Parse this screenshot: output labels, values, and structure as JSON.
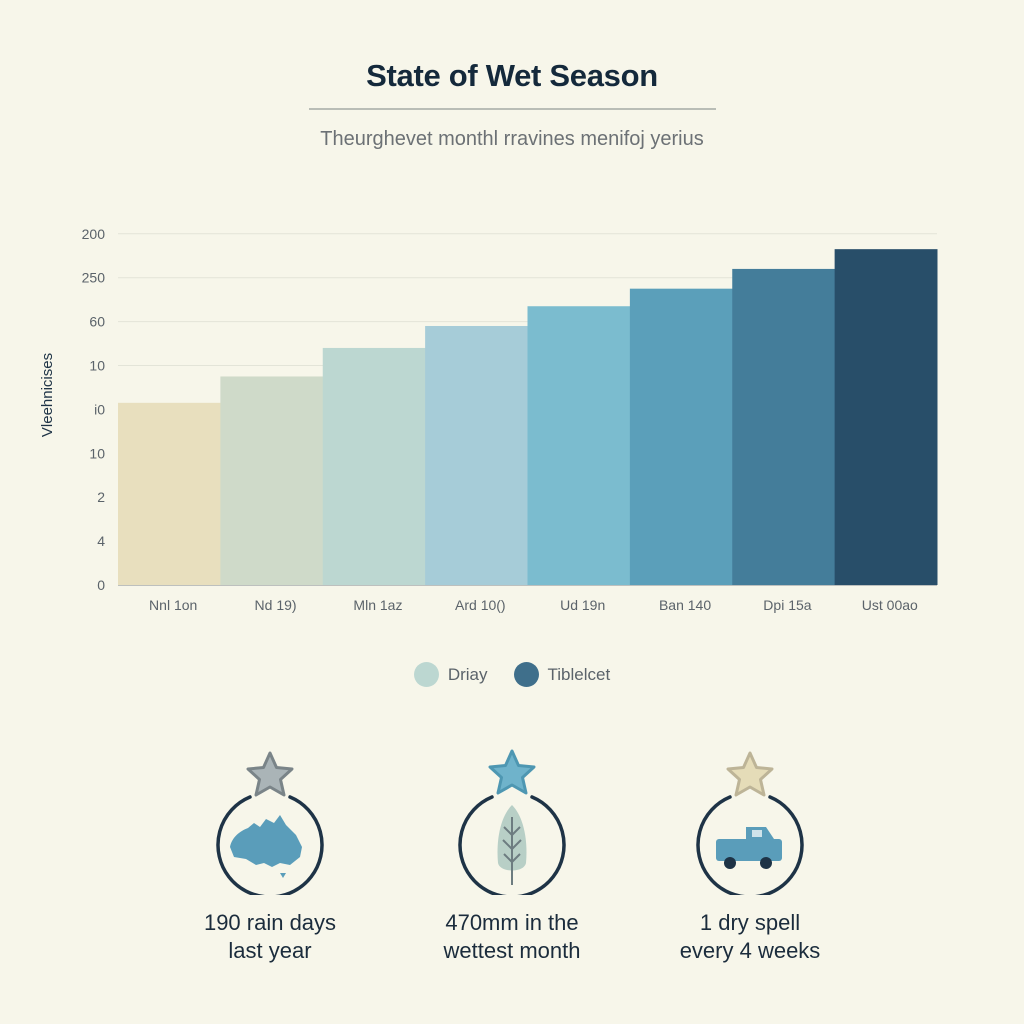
{
  "header": {
    "title": "State of Wet Season",
    "subtitle": "Theurghevet monthl rravines menifoj yerius"
  },
  "chart_data": {
    "type": "bar",
    "ylabel": "Vleehnicises",
    "ytick_labels": [
      "0",
      "4",
      "2",
      "10",
      "i0",
      "10",
      "60",
      "250",
      "200"
    ],
    "categories": [
      "Nnl 1on",
      "Nd 19)",
      "Mln 1az",
      "Ard 10()",
      "Ud 19n",
      "Ban 140",
      "Dpi 15a",
      "Ust 00ao"
    ],
    "values_tick_units": [
      4.15,
      4.75,
      5.4,
      5.9,
      6.35,
      6.75,
      7.2,
      7.65
    ],
    "bar_colors": [
      "#e8dfbe",
      "#cfdac9",
      "#bcd7d1",
      "#a6ccd8",
      "#7bbccf",
      "#5b9fba",
      "#447d9a",
      "#284e69"
    ],
    "grid": "horizontal",
    "legend": {
      "placement": "bottom",
      "items": [
        {
          "label": "Driay",
          "color": "#bcd7d1"
        },
        {
          "label": "Tiblelcet",
          "color": "#3f6f8b"
        }
      ]
    }
  },
  "stats": [
    {
      "line1": "190 rain days",
      "line2": "last year",
      "icon": "australia-map-icon",
      "star_color": "#aab4b7"
    },
    {
      "line1": "470mm in the",
      "line2": "wettest month",
      "icon": "tree-icon",
      "star_color": "#6fb3cb"
    },
    {
      "line1": "1 dry spell",
      "line2": "every 4 weeks",
      "icon": "truck-icon",
      "star_color": "#e5dcb8"
    }
  ]
}
